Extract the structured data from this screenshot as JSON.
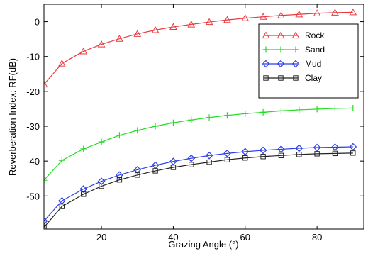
{
  "chart_data": {
    "type": "line",
    "title": "",
    "xlabel": "Grazing Angle (°)",
    "ylabel": "Reverberation Index: RF(dB)",
    "xlim": [
      4,
      93
    ],
    "ylim": [
      -59.5,
      5
    ],
    "xticks": [
      20,
      40,
      60,
      80
    ],
    "yticks": [
      0,
      -10,
      -20,
      -30,
      -40,
      -50
    ],
    "xtick_labels": [
      "20",
      "40",
      "60",
      "80"
    ],
    "ytick_labels": [
      "0",
      "-10",
      "-20",
      "-30",
      "-40",
      "-50"
    ],
    "grid": false,
    "legend_position": "top-right",
    "x": [
      4,
      9,
      15,
      20,
      25,
      30,
      35,
      40,
      45,
      50,
      55,
      60,
      65,
      70,
      75,
      80,
      85,
      90
    ],
    "series": [
      {
        "name": "Rock",
        "color": "#e8393f",
        "marker": "triangle",
        "values": [
          -18.0,
          -12.0,
          -8.5,
          -6.5,
          -4.9,
          -3.5,
          -2.4,
          -1.5,
          -0.8,
          -0.1,
          0.5,
          1.0,
          1.4,
          1.8,
          2.1,
          2.4,
          2.6,
          2.7
        ]
      },
      {
        "name": "Sand",
        "color": "#22dd22",
        "marker": "plus",
        "values": [
          -45.5,
          -39.8,
          -36.5,
          -34.5,
          -32.6,
          -31.2,
          -30.0,
          -29.0,
          -28.2,
          -27.5,
          -26.9,
          -26.4,
          -26.0,
          -25.6,
          -25.3,
          -25.1,
          -24.9,
          -24.8
        ]
      },
      {
        "name": "Mud",
        "color": "#2e3ee6",
        "marker": "diamond",
        "values": [
          -57.2,
          -51.4,
          -48.0,
          -45.8,
          -44.0,
          -42.5,
          -41.2,
          -40.1,
          -39.2,
          -38.4,
          -37.8,
          -37.3,
          -36.9,
          -36.6,
          -36.3,
          -36.1,
          -36.0,
          -35.9
        ]
      },
      {
        "name": "Clay",
        "color": "#222222",
        "marker": "square",
        "values": [
          -59.0,
          -53.0,
          -49.5,
          -47.2,
          -45.4,
          -44.0,
          -42.8,
          -41.8,
          -41.0,
          -40.3,
          -39.6,
          -39.1,
          -38.7,
          -38.4,
          -38.1,
          -37.9,
          -37.8,
          -37.7
        ]
      }
    ]
  }
}
